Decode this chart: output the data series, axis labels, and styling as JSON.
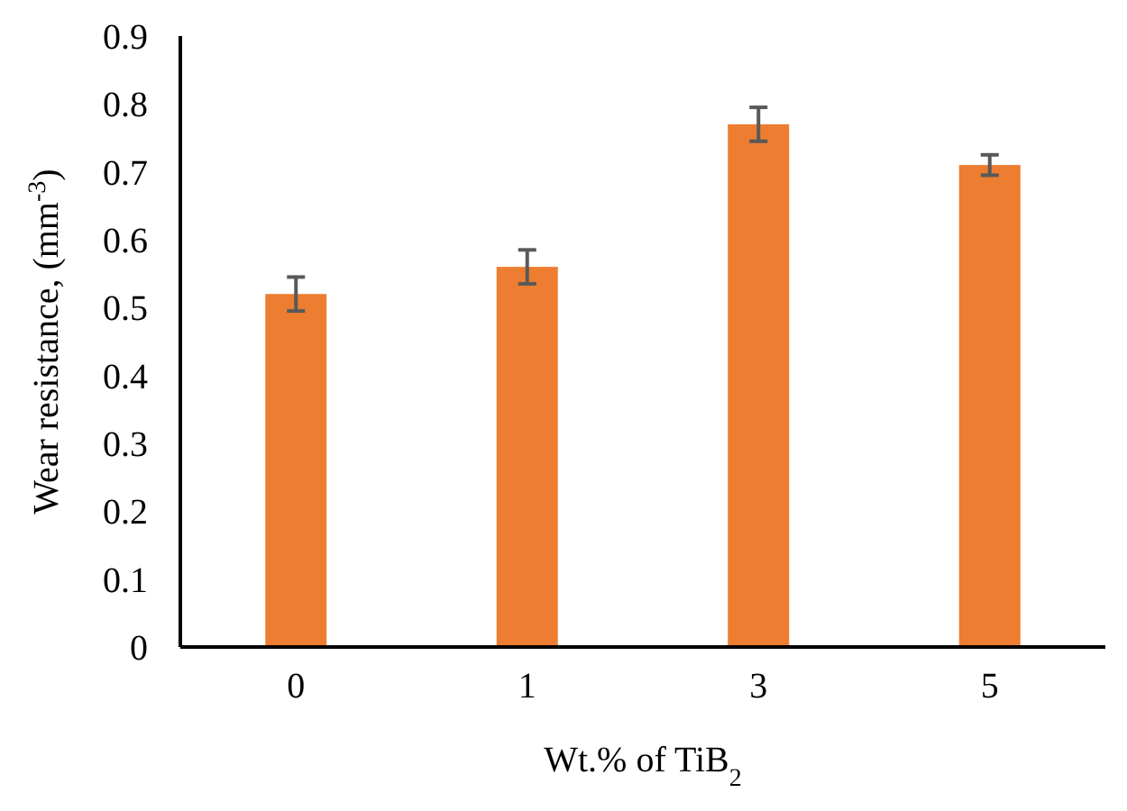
{
  "chart_data": {
    "type": "bar",
    "xlabel": "Wt.% of TiB$_{2}$",
    "ylabel": "Wear resistance, (mm$^{-3}$)",
    "categories": [
      "0",
      "1",
      "3",
      "5"
    ],
    "values": [
      0.52,
      0.56,
      0.77,
      0.71
    ],
    "errors": [
      0.025,
      0.025,
      0.025,
      0.015
    ],
    "color": "#ed7d31",
    "ylim": [
      0,
      0.9
    ],
    "yticks": [
      0,
      0.1,
      0.2,
      0.3,
      0.4,
      0.5,
      0.6,
      0.7,
      0.8,
      0.9
    ],
    "grid": false
  }
}
